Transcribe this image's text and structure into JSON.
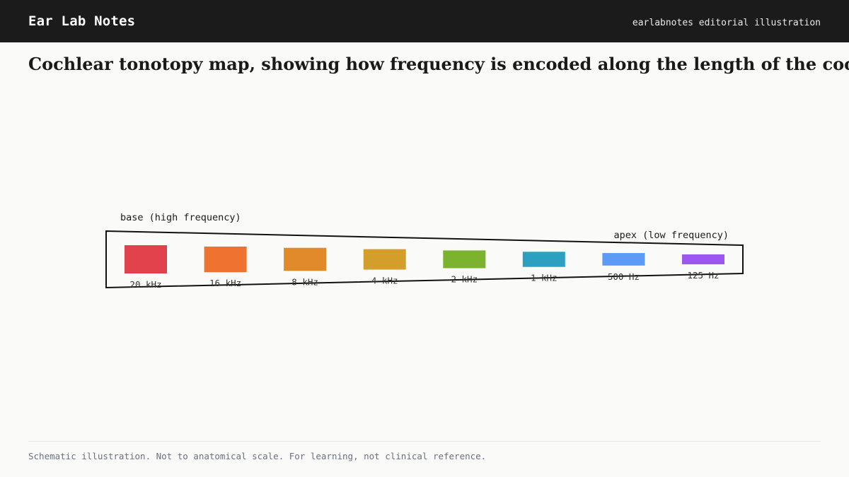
{
  "header": {
    "brand": "Ear Lab Notes",
    "credit": "earlabnotes editorial illustration"
  },
  "title": "Cochlear tonotopy map, showing how frequency is encoded along the length of the cochlea from base (high frequency) to apex (low frequency)",
  "diagram": {
    "base_label": "base (high frequency)",
    "apex_label": "apex (low frequency)",
    "regions": [
      {
        "label": "20 kHz",
        "color": "#e0414a"
      },
      {
        "label": "16 kHz",
        "color": "#ee7330"
      },
      {
        "label": "8 kHz",
        "color": "#e08a2a"
      },
      {
        "label": "4 kHz",
        "color": "#d39e2a"
      },
      {
        "label": "2 kHz",
        "color": "#7bb22e"
      },
      {
        "label": "1 kHz",
        "color": "#2ea0bf"
      },
      {
        "label": "500 Hz",
        "color": "#5b9bf5"
      },
      {
        "label": "125 Hz",
        "color": "#9b57f0"
      }
    ]
  },
  "footer": "Schematic illustration. Not to anatomical scale. For learning, not clinical reference."
}
